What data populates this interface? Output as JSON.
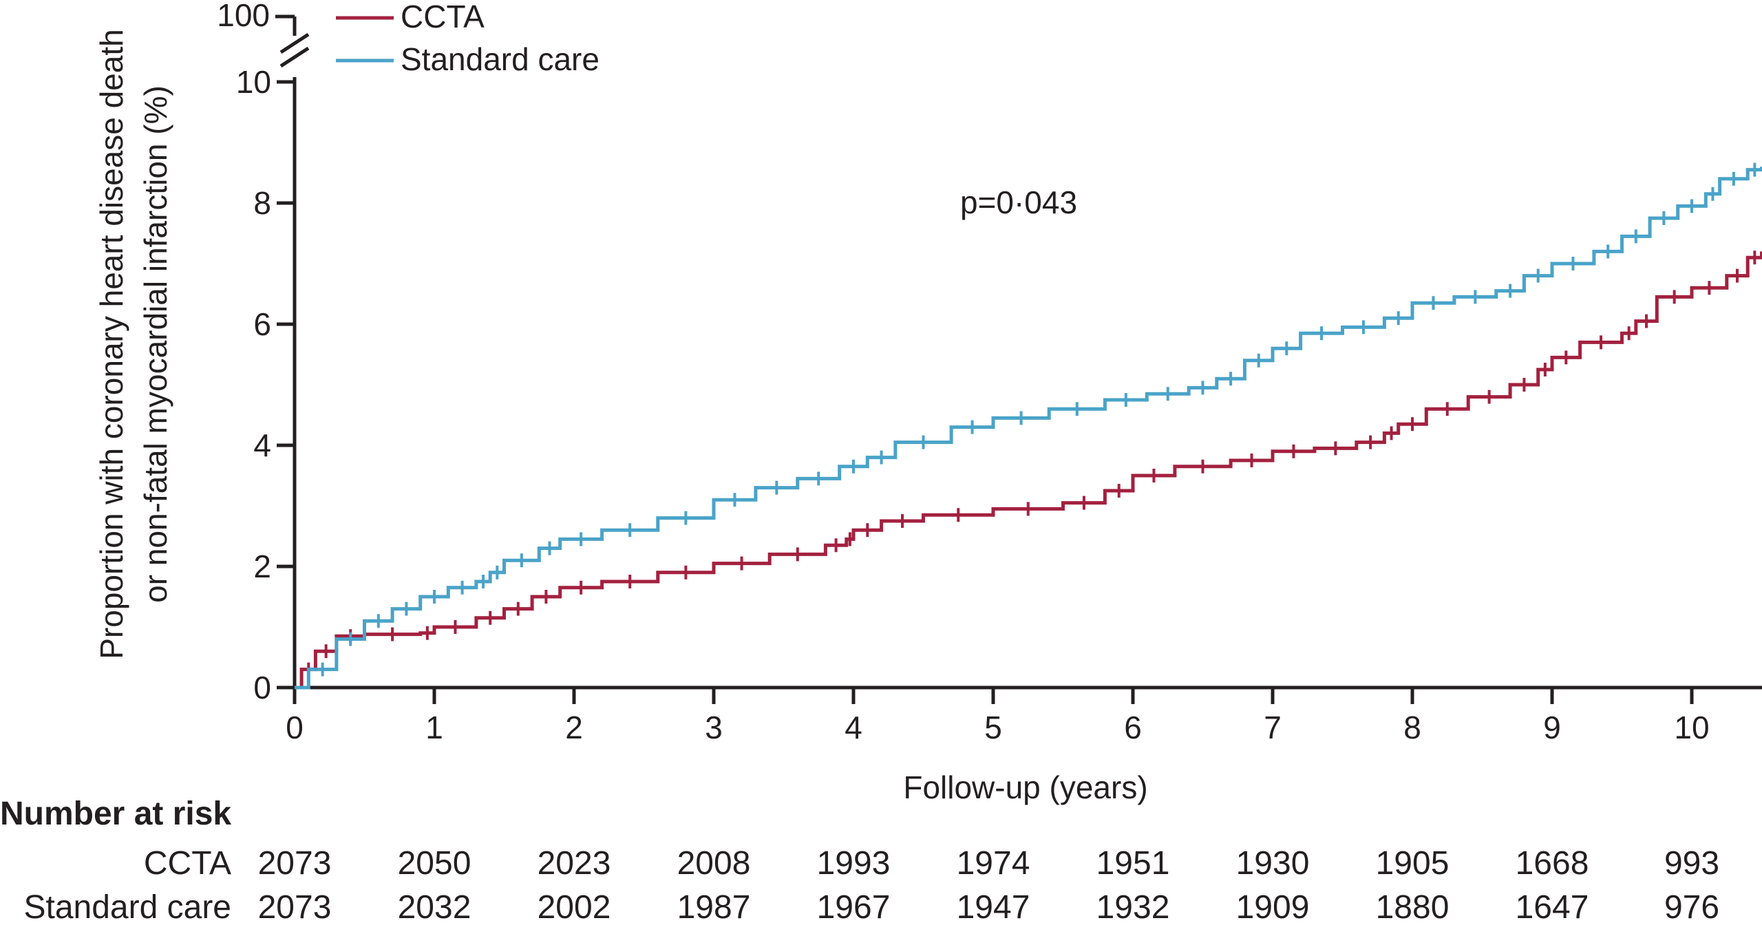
{
  "chart_data": {
    "type": "line",
    "step": true,
    "annotation": "p=0·043",
    "xlabel": "Follow-up (years)",
    "ylabel_lines": [
      "Proportion with coronary heart disease death",
      "or non-fatal myocardial infarction (%)"
    ],
    "xlim": [
      0,
      10.5
    ],
    "ylim": [
      0,
      10
    ],
    "y_axis_break_label": "100",
    "x_ticks": [
      0,
      1,
      2,
      3,
      4,
      5,
      6,
      7,
      8,
      9,
      10
    ],
    "x_tick_labels": [
      "0",
      "1",
      "2",
      "3",
      "4",
      "5",
      "6",
      "7",
      "8",
      "9",
      "10"
    ],
    "y_ticks": [
      0,
      2,
      4,
      6,
      8,
      10
    ],
    "y_tick_labels": [
      "0",
      "2",
      "4",
      "6",
      "8",
      "10"
    ],
    "series": [
      {
        "name": "CCTA",
        "color": "#a3213f",
        "points": [
          [
            0,
            0
          ],
          [
            0.05,
            0.3
          ],
          [
            0.15,
            0.6
          ],
          [
            0.3,
            0.85
          ],
          [
            0.5,
            0.88
          ],
          [
            0.9,
            0.9
          ],
          [
            1.0,
            1.0
          ],
          [
            1.3,
            1.15
          ],
          [
            1.5,
            1.3
          ],
          [
            1.7,
            1.5
          ],
          [
            1.9,
            1.65
          ],
          [
            2.2,
            1.75
          ],
          [
            2.6,
            1.9
          ],
          [
            3.0,
            2.05
          ],
          [
            3.4,
            2.2
          ],
          [
            3.8,
            2.35
          ],
          [
            3.95,
            2.45
          ],
          [
            4.0,
            2.6
          ],
          [
            4.2,
            2.75
          ],
          [
            4.5,
            2.85
          ],
          [
            5.0,
            2.95
          ],
          [
            5.5,
            3.05
          ],
          [
            5.8,
            3.25
          ],
          [
            6.0,
            3.5
          ],
          [
            6.3,
            3.65
          ],
          [
            6.7,
            3.75
          ],
          [
            7.0,
            3.9
          ],
          [
            7.3,
            3.95
          ],
          [
            7.6,
            4.05
          ],
          [
            7.8,
            4.2
          ],
          [
            7.9,
            4.35
          ],
          [
            8.1,
            4.6
          ],
          [
            8.4,
            4.8
          ],
          [
            8.7,
            5.0
          ],
          [
            8.9,
            5.25
          ],
          [
            9.0,
            5.45
          ],
          [
            9.2,
            5.7
          ],
          [
            9.5,
            5.85
          ],
          [
            9.6,
            6.05
          ],
          [
            9.75,
            6.45
          ],
          [
            10.0,
            6.6
          ],
          [
            10.25,
            6.8
          ],
          [
            10.4,
            7.1
          ],
          [
            10.5,
            7.2
          ]
        ]
      },
      {
        "name": "Standard care",
        "color": "#4aa3c8",
        "points": [
          [
            0,
            0
          ],
          [
            0.1,
            0.3
          ],
          [
            0.3,
            0.8
          ],
          [
            0.5,
            1.1
          ],
          [
            0.7,
            1.3
          ],
          [
            0.9,
            1.5
          ],
          [
            1.1,
            1.65
          ],
          [
            1.3,
            1.75
          ],
          [
            1.4,
            1.9
          ],
          [
            1.5,
            2.1
          ],
          [
            1.75,
            2.3
          ],
          [
            1.9,
            2.45
          ],
          [
            2.2,
            2.6
          ],
          [
            2.6,
            2.8
          ],
          [
            3.0,
            3.1
          ],
          [
            3.3,
            3.3
          ],
          [
            3.6,
            3.45
          ],
          [
            3.9,
            3.65
          ],
          [
            4.1,
            3.8
          ],
          [
            4.3,
            4.05
          ],
          [
            4.7,
            4.3
          ],
          [
            5.0,
            4.45
          ],
          [
            5.4,
            4.6
          ],
          [
            5.8,
            4.75
          ],
          [
            6.1,
            4.85
          ],
          [
            6.4,
            4.95
          ],
          [
            6.6,
            5.1
          ],
          [
            6.8,
            5.4
          ],
          [
            7.0,
            5.6
          ],
          [
            7.2,
            5.85
          ],
          [
            7.5,
            5.95
          ],
          [
            7.8,
            6.1
          ],
          [
            8.0,
            6.35
          ],
          [
            8.3,
            6.45
          ],
          [
            8.6,
            6.55
          ],
          [
            8.8,
            6.8
          ],
          [
            9.0,
            7.0
          ],
          [
            9.3,
            7.2
          ],
          [
            9.5,
            7.45
          ],
          [
            9.7,
            7.75
          ],
          [
            9.9,
            7.95
          ],
          [
            10.1,
            8.15
          ],
          [
            10.2,
            8.4
          ],
          [
            10.4,
            8.55
          ],
          [
            10.5,
            8.6
          ]
        ]
      }
    ]
  },
  "risk_table": {
    "heading": "Number at risk",
    "rows": [
      {
        "label": "CCTA",
        "values": [
          "2073",
          "2050",
          "2023",
          "2008",
          "1993",
          "1974",
          "1951",
          "1930",
          "1905",
          "1668",
          "993"
        ]
      },
      {
        "label": "Standard care",
        "values": [
          "2073",
          "2032",
          "2002",
          "1987",
          "1967",
          "1947",
          "1932",
          "1909",
          "1880",
          "1647",
          "976"
        ]
      }
    ]
  }
}
